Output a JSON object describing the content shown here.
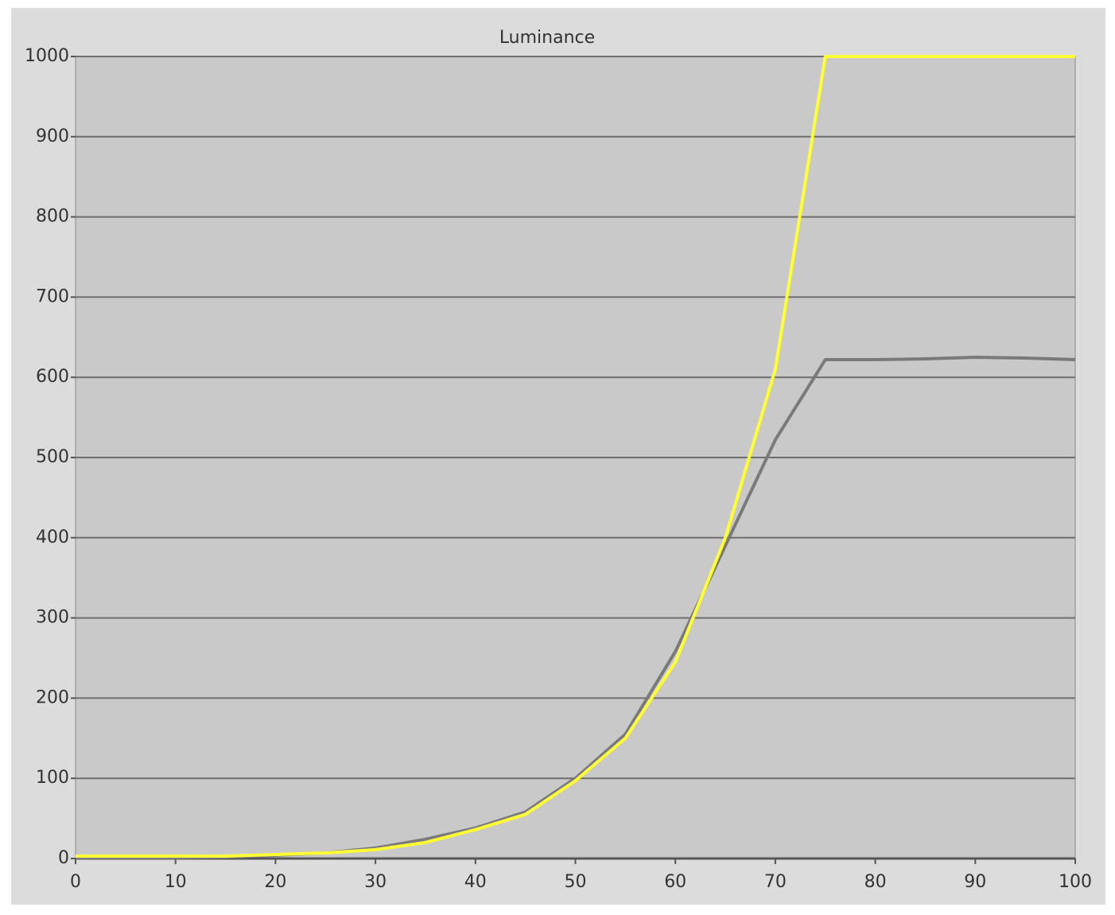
{
  "chart_data": {
    "type": "line",
    "title": "Luminance",
    "x": [
      0,
      5,
      10,
      15,
      20,
      25,
      30,
      35,
      40,
      45,
      50,
      55,
      60,
      65,
      70,
      75,
      80,
      85,
      90,
      95,
      100
    ],
    "series": [
      {
        "color": "#7a7a7a",
        "values": [
          1,
          1,
          1,
          2,
          4,
          7,
          13,
          24,
          38,
          58,
          100,
          155,
          258,
          390,
          522,
          622,
          622,
          623,
          625,
          624,
          622
        ]
      },
      {
        "color": "#ffff33",
        "values": [
          3,
          3,
          3,
          3,
          5,
          7,
          11,
          20,
          36,
          55,
          97,
          150,
          245,
          400,
          610,
          1000,
          1000,
          1000,
          1000,
          1000,
          1000
        ]
      }
    ],
    "xlim": [
      0,
      100
    ],
    "xticks": [
      0,
      10,
      20,
      30,
      40,
      50,
      60,
      70,
      80,
      90,
      100
    ],
    "ylim": [
      0,
      1000
    ],
    "yticks": [
      0,
      100,
      200,
      300,
      400,
      500,
      600,
      700,
      800,
      900,
      1000
    ],
    "grid": true
  }
}
